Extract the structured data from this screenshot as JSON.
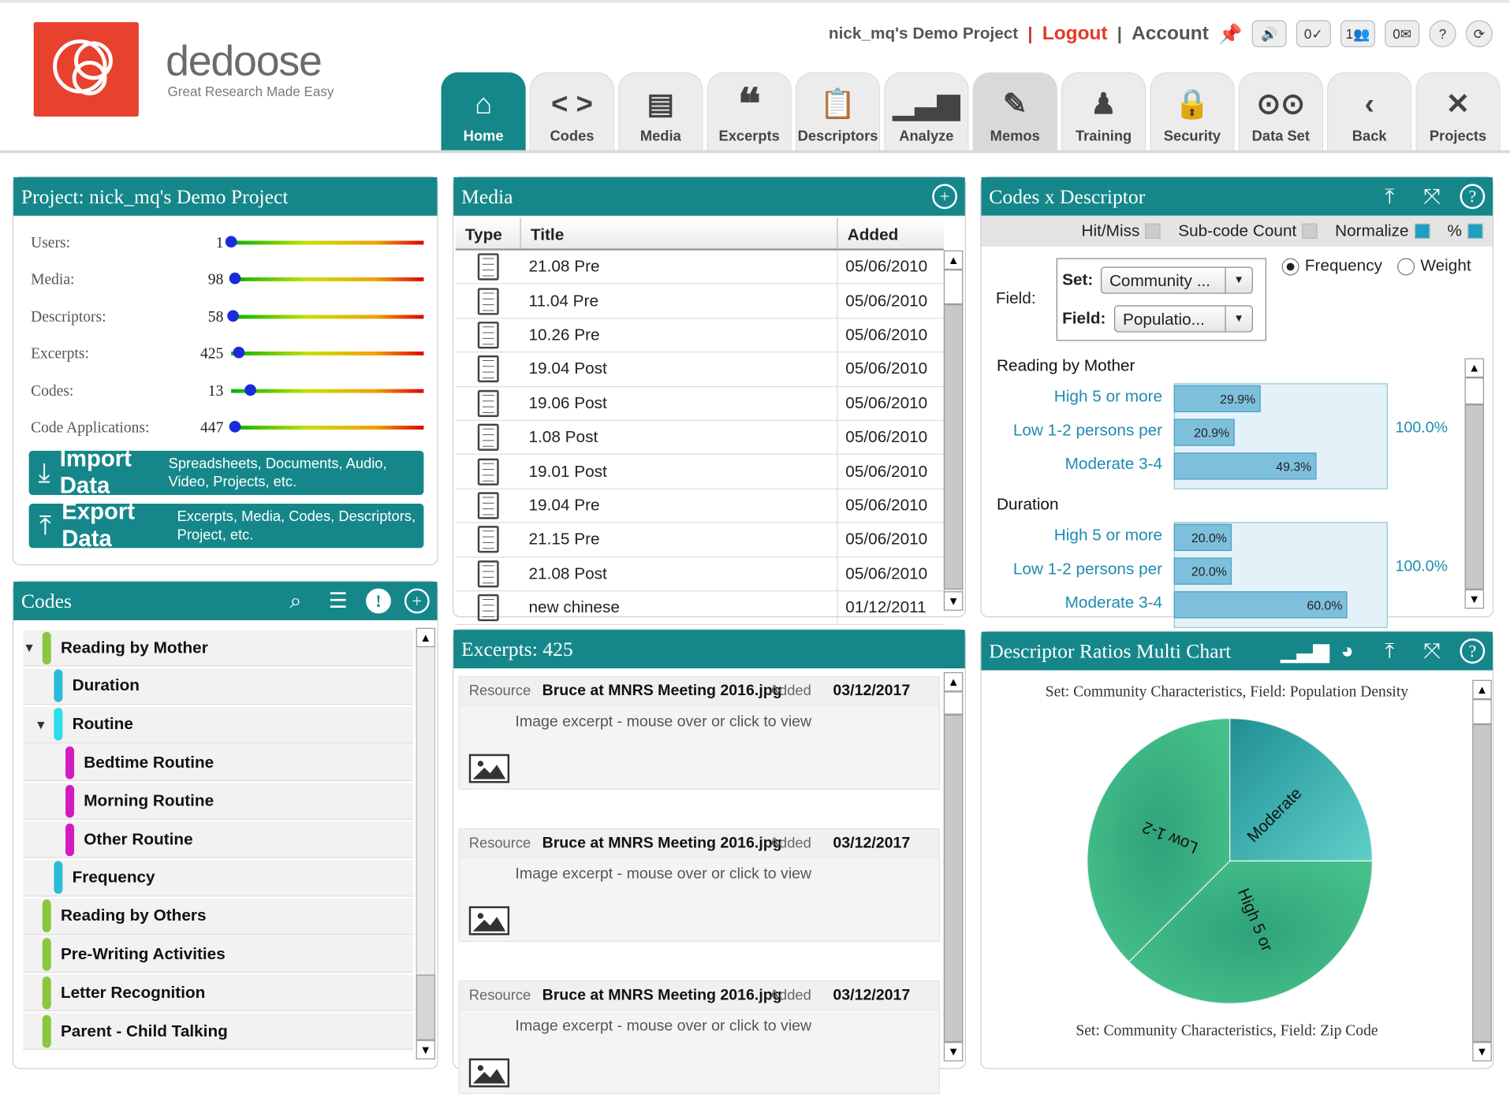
{
  "header": {
    "brand": "dedoose",
    "tagline": "Great Research Made Easy",
    "project_name": "nick_mq's Demo Project",
    "logout_label": "Logout",
    "account_label": "Account",
    "counter_checks": "0",
    "counter_people": "1",
    "counter_mail": "0"
  },
  "nav": {
    "tabs": [
      {
        "label": "Home"
      },
      {
        "label": "Codes"
      },
      {
        "label": "Media"
      },
      {
        "label": "Excerpts"
      },
      {
        "label": "Descriptors"
      },
      {
        "label": "Analyze"
      },
      {
        "label": "Memos"
      },
      {
        "label": "Training"
      },
      {
        "label": "Security"
      },
      {
        "label": "Data Set"
      },
      {
        "label": "Back"
      },
      {
        "label": "Projects"
      }
    ]
  },
  "project": {
    "title": "Project: nick_mq's Demo Project",
    "stats": [
      {
        "label": "Users:",
        "value": "1",
        "level": 0.0
      },
      {
        "label": "Media:",
        "value": "98",
        "level": 0.02
      },
      {
        "label": "Descriptors:",
        "value": "58",
        "level": 0.01
      },
      {
        "label": "Excerpts:",
        "value": "425",
        "level": 0.04
      },
      {
        "label": "Codes:",
        "value": "13",
        "level": 0.1
      },
      {
        "label": "Code Applications:",
        "value": "447",
        "level": 0.02
      }
    ],
    "import_label": "Import Data",
    "import_sub": "Spreadsheets, Documents, Audio, Video, Projects, etc.",
    "export_label": "Export Data",
    "export_sub": "Excerpts, Media, Codes, Descriptors, Project, etc."
  },
  "codes": {
    "title": "Codes",
    "items": [
      {
        "label": "Reading by Mother",
        "color": "#8dc63f",
        "level": 0,
        "toggle": "expanded"
      },
      {
        "label": "Duration",
        "color": "#2bbbd8",
        "level": 1,
        "toggle": "none"
      },
      {
        "label": "Routine",
        "color": "#2bdde8",
        "level": 1,
        "toggle": "expanded"
      },
      {
        "label": "Bedtime Routine",
        "color": "#d21cc0",
        "level": 2,
        "toggle": "none"
      },
      {
        "label": "Morning Routine",
        "color": "#d21cc0",
        "level": 2,
        "toggle": "none"
      },
      {
        "label": "Other Routine",
        "color": "#d21cc0",
        "level": 2,
        "toggle": "none"
      },
      {
        "label": "Frequency",
        "color": "#2bbbd8",
        "level": 1,
        "toggle": "none"
      },
      {
        "label": "Reading by Others",
        "color": "#8dc63f",
        "level": 0,
        "toggle": "none"
      },
      {
        "label": "Pre-Writing Activities",
        "color": "#8dc63f",
        "level": 0,
        "toggle": "none"
      },
      {
        "label": "Letter Recognition",
        "color": "#8dc63f",
        "level": 0,
        "toggle": "none"
      },
      {
        "label": "Parent - Child Talking",
        "color": "#8dc63f",
        "level": 0,
        "toggle": "none"
      }
    ]
  },
  "media": {
    "title": "Media",
    "columns": [
      "Type",
      "Title",
      "Added"
    ],
    "rows": [
      {
        "title": "21.08 Pre",
        "added": "05/06/2010"
      },
      {
        "title": "11.04 Pre",
        "added": "05/06/2010"
      },
      {
        "title": "10.26 Pre",
        "added": "05/06/2010"
      },
      {
        "title": "19.04 Post",
        "added": "05/06/2010"
      },
      {
        "title": "19.06 Post",
        "added": "05/06/2010"
      },
      {
        "title": "1.08 Post",
        "added": "05/06/2010"
      },
      {
        "title": "19.01 Post",
        "added": "05/06/2010"
      },
      {
        "title": "19.04 Pre",
        "added": "05/06/2010"
      },
      {
        "title": "21.15 Pre",
        "added": "05/06/2010"
      },
      {
        "title": "21.08 Post",
        "added": "05/06/2010"
      },
      {
        "title": "new chinese",
        "added": "01/12/2011"
      }
    ]
  },
  "excerpts": {
    "title": "Excerpts: 425",
    "resource_label": "Resource",
    "added_label": "Added",
    "items": [
      {
        "resource": "Bruce at MNRS Meeting 2016.jpg",
        "added": "03/12/2017",
        "desc": "Image excerpt - mouse over or click to view"
      },
      {
        "resource": "Bruce at MNRS Meeting 2016.jpg",
        "added": "03/12/2017",
        "desc": "Image excerpt - mouse over or click to view"
      },
      {
        "resource": "Bruce at MNRS Meeting 2016.jpg",
        "added": "03/12/2017",
        "desc": "Image excerpt - mouse over or click to view"
      }
    ]
  },
  "cxd": {
    "title": "Codes x Descriptor",
    "hit_miss": "Hit/Miss",
    "subcode_count": "Sub-code Count",
    "normalize": "Normalize",
    "percent": "%",
    "field_label": "Field:",
    "set_label": "Set:",
    "set_value": "Community ...",
    "field2_label": "Field:",
    "field_value": "Populatio...",
    "frequency": "Frequency",
    "weight": "Weight",
    "groups": [
      {
        "name": "Reading by Mother",
        "total": "100.0%",
        "bars": [
          {
            "label": "High 5 or more",
            "value": 29.9,
            "text": "29.9%"
          },
          {
            "label": "Low 1-2 persons per",
            "value": 20.9,
            "text": "20.9%"
          },
          {
            "label": "Moderate 3-4",
            "value": 49.3,
            "text": "49.3%"
          }
        ]
      },
      {
        "name": "Duration",
        "total": "100.0%",
        "bars": [
          {
            "label": "High 5 or more",
            "value": 20.0,
            "text": "20.0%"
          },
          {
            "label": "Low 1-2 persons per",
            "value": 20.0,
            "text": "20.0%"
          },
          {
            "label": "Moderate 3-4",
            "value": 60.0,
            "text": "60.0%"
          }
        ]
      }
    ]
  },
  "drm": {
    "title": "Descriptor Ratios Multi Chart",
    "chart1_title": "Set: Community Characteristics, Field: Population Density",
    "chart2_title": "Set: Community Characteristics, Field: Zip Code"
  },
  "chart_data": {
    "type": "pie",
    "title": "Set: Community Characteristics, Field: Population Density",
    "categories": [
      "Moderate",
      "High 5 or",
      "Low 1-2"
    ],
    "values": [
      25,
      37.5,
      37.5
    ]
  }
}
